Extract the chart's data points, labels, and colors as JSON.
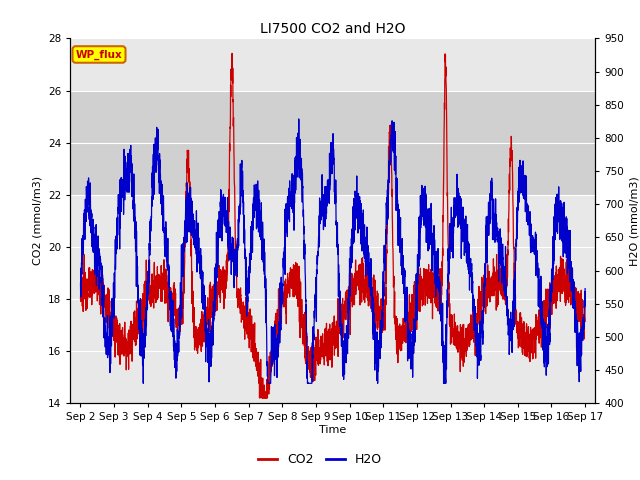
{
  "title": "LI7500 CO2 and H2O",
  "xlabel": "Time",
  "ylabel_left": "CO2 (mmol/m3)",
  "ylabel_right": "H2O (mmol/m3)",
  "ylim_left": [
    14,
    28
  ],
  "ylim_right": [
    400,
    950
  ],
  "yticks_left": [
    14,
    16,
    18,
    20,
    22,
    24,
    26,
    28
  ],
  "yticks_right": [
    400,
    450,
    500,
    550,
    600,
    650,
    700,
    750,
    800,
    850,
    900,
    950
  ],
  "background_color": "#ffffff",
  "plot_bg_color": "#e8e8e8",
  "band_color": "#d0d0d0",
  "band_low": 22,
  "band_high": 26,
  "co2_color": "#cc0000",
  "h2o_color": "#0000cc",
  "annotation_text": "WP_flux",
  "annotation_bg": "#ffff00",
  "annotation_border": "#cc6600",
  "title_fontsize": 10,
  "axis_fontsize": 8,
  "tick_fontsize": 7.5,
  "legend_fontsize": 9
}
